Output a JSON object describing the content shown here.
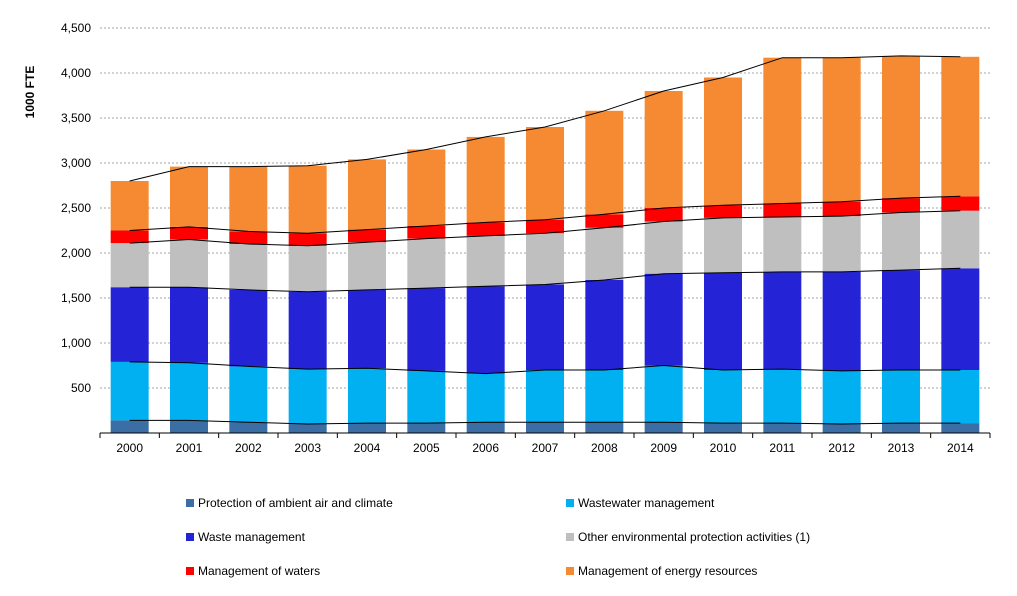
{
  "chart_data": {
    "type": "bar",
    "stacked": true,
    "title": "",
    "xlabel": "",
    "ylabel": "1000 FTE",
    "ylim": [
      0,
      4500
    ],
    "yticks": [
      "4,500",
      "4,000",
      "3,500",
      "3,000",
      "2,500",
      "2,000",
      "1,500",
      "1,000",
      "500"
    ],
    "ytick_values": [
      4500,
      4000,
      3500,
      3000,
      2500,
      2000,
      1500,
      1000,
      500
    ],
    "grid": "horizontal dashed",
    "legend_position": "bottom",
    "categories": [
      "2000",
      "2001",
      "2002",
      "2003",
      "2004",
      "2005",
      "2006",
      "2007",
      "2008",
      "2009",
      "2010",
      "2011",
      "2012",
      "2013",
      "2014"
    ],
    "series": [
      {
        "name": "Protection of ambient air and climate",
        "color": "#3a6ea5",
        "values": [
          140,
          140,
          120,
          100,
          110,
          110,
          120,
          120,
          120,
          120,
          110,
          110,
          100,
          110,
          110
        ]
      },
      {
        "name": "Wastewater management",
        "color": "#00b0f0",
        "values": [
          650,
          640,
          620,
          610,
          610,
          580,
          540,
          580,
          580,
          630,
          590,
          600,
          590,
          590,
          590
        ]
      },
      {
        "name": "Waste management",
        "color": "#2424d6",
        "values": [
          830,
          840,
          850,
          860,
          870,
          920,
          970,
          950,
          1000,
          1020,
          1080,
          1080,
          1100,
          1110,
          1130
        ]
      },
      {
        "name": "Other environmental protection activities (1)",
        "color": "#bfbfbf",
        "values": [
          490,
          530,
          510,
          510,
          530,
          550,
          560,
          570,
          580,
          580,
          610,
          610,
          620,
          640,
          640
        ]
      },
      {
        "name": "Management of waters",
        "color": "#ff0000",
        "values": [
          140,
          140,
          140,
          140,
          140,
          140,
          150,
          150,
          150,
          150,
          140,
          150,
          160,
          160,
          160
        ]
      },
      {
        "name": "Management of energy resources",
        "color": "#f58a33",
        "values": [
          550,
          670,
          720,
          750,
          780,
          850,
          950,
          1030,
          1150,
          1300,
          1420,
          1620,
          1600,
          1580,
          1550
        ]
      }
    ]
  }
}
